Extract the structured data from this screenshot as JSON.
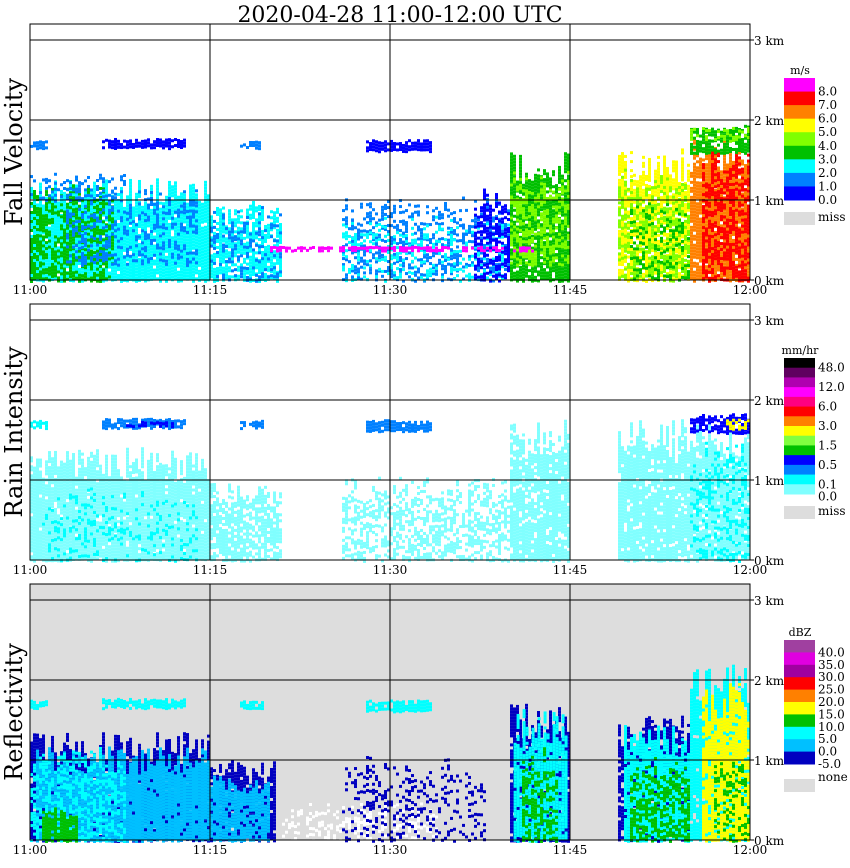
{
  "chart_data": {
    "type": "heatmap",
    "title": "2020-04-28   11:00-12:00 UTC",
    "x_ticks": [
      "11:00",
      "11:15",
      "11:30",
      "11:45",
      "12:00"
    ],
    "x_range_minutes": [
      0,
      60
    ],
    "y_ticks": [
      "0 km",
      "1 km",
      "2 km",
      "3 km"
    ],
    "y_range_km": [
      0,
      3.2
    ],
    "grid": true,
    "panels": [
      {
        "ylabel": "Fall Velocity",
        "background": "#ffffff",
        "colorbar": {
          "unit": "m/s",
          "colors": [
            "#ff00ff",
            "#ff0000",
            "#ff8000",
            "#ffff00",
            "#80ff00",
            "#00c000",
            "#00ffff",
            "#0080ff",
            "#0000ff"
          ],
          "labels": [
            "8.0",
            "7.0",
            "6.0",
            "5.0",
            "4.0",
            "3.0",
            "2.0",
            "1.0",
            "0.0"
          ],
          "missing_label": "miss",
          "missing_color": "#dddddd"
        },
        "echoes": [
          [
            0,
            1.5,
            1.66,
            1.74,
            "#0080ff",
            0.9
          ],
          [
            6,
            13,
            1.66,
            1.76,
            "#0000ff",
            0.9
          ],
          [
            17.5,
            19.5,
            1.66,
            1.74,
            "#0080ff",
            0.8
          ],
          [
            28,
            33.5,
            1.62,
            1.74,
            "#0000ff",
            0.9
          ],
          [
            0,
            15,
            0,
            1.1,
            "#00ffff",
            0.95
          ],
          [
            0,
            7,
            0,
            1.05,
            "#00c000",
            0.6
          ],
          [
            3,
            14,
            0.2,
            1.0,
            "#0080ff",
            0.35
          ],
          [
            0,
            8,
            1.0,
            1.3,
            "#0080ff",
            0.3
          ],
          [
            15,
            21,
            0,
            0.85,
            "#00ffff",
            0.7
          ],
          [
            15,
            21,
            0,
            0.8,
            "#0080ff",
            0.3
          ],
          [
            26,
            40,
            0,
            0.9,
            "#0080ff",
            0.35
          ],
          [
            26,
            40,
            0,
            0.7,
            "#00ffff",
            0.25
          ],
          [
            37,
            40,
            0,
            1.0,
            "#0000ff",
            0.5
          ],
          [
            40,
            45,
            0,
            1.4,
            "#00c000",
            0.9
          ],
          [
            40,
            45,
            0.2,
            1.2,
            "#80ff00",
            0.5
          ],
          [
            49,
            55,
            0,
            1.4,
            "#ffff00",
            0.8
          ],
          [
            49,
            55,
            0,
            1.2,
            "#80ff00",
            0.4
          ],
          [
            50,
            55,
            0,
            0.9,
            "#00c000",
            0.3
          ],
          [
            55,
            60,
            0,
            1.6,
            "#ff8000",
            0.9
          ],
          [
            56,
            60,
            0,
            1.4,
            "#ff0000",
            0.6
          ],
          [
            55,
            60,
            1.6,
            1.9,
            "#00c000",
            0.8
          ],
          [
            55,
            60,
            1.75,
            1.9,
            "#80ff00",
            0.4
          ],
          [
            20,
            42,
            0.38,
            0.42,
            "#ff00ff",
            0.7
          ]
        ]
      },
      {
        "ylabel": "Rain Intensity",
        "background": "#ffffff",
        "colorbar": {
          "unit": "mm/hr",
          "colors": [
            "#000000",
            "#600060",
            "#b000b0",
            "#ff00ff",
            "#ff0080",
            "#ff0000",
            "#ff8000",
            "#ffff00",
            "#80ff40",
            "#00c000",
            "#0000ff",
            "#0080ff",
            "#00ffff",
            "#80ffff"
          ],
          "labels": [
            "48.0",
            "12.0",
            "6.0",
            "3.0",
            "1.5",
            "0.5",
            "0.1",
            "0.0"
          ],
          "missing_label": "miss",
          "missing_color": "#dddddd"
        },
        "echoes": [
          [
            0,
            1.5,
            1.66,
            1.74,
            "#00ffff",
            0.8
          ],
          [
            6,
            13,
            1.66,
            1.76,
            "#0080ff",
            0.9
          ],
          [
            8,
            12,
            1.68,
            1.73,
            "#0000ff",
            0.6
          ],
          [
            17.5,
            19.5,
            1.66,
            1.74,
            "#0080ff",
            0.8
          ],
          [
            28,
            33.5,
            1.62,
            1.74,
            "#0080ff",
            0.9
          ],
          [
            0,
            15,
            0,
            1.2,
            "#80ffff",
            0.95
          ],
          [
            1,
            14,
            0,
            0.8,
            "#00ffff",
            0.2
          ],
          [
            15,
            21,
            0,
            0.85,
            "#80ffff",
            0.75
          ],
          [
            26,
            40,
            0,
            0.9,
            "#80ffff",
            0.5
          ],
          [
            40,
            45,
            0,
            1.5,
            "#80ffff",
            0.85
          ],
          [
            49,
            60,
            0,
            1.5,
            "#80ffff",
            0.9
          ],
          [
            55,
            60,
            0,
            1.3,
            "#00ffff",
            0.35
          ],
          [
            55,
            60,
            1.6,
            1.8,
            "#0000ff",
            0.8
          ],
          [
            58,
            60,
            1.65,
            1.75,
            "#ffff00",
            0.6
          ]
        ]
      },
      {
        "ylabel": "Reflectivity",
        "background": "#dddddd",
        "colorbar": {
          "unit": "dBZ",
          "colors": [
            "#a040a0",
            "#e000e0",
            "#a000a0",
            "#ff0000",
            "#ff8000",
            "#ffff00",
            "#00c000",
            "#00ffff",
            "#00c0ff",
            "#0000c0"
          ],
          "labels": [
            "40.0",
            "35.0",
            "30.0",
            "25.0",
            "20.0",
            "15.0",
            "10.0",
            "5.0",
            "0.0",
            "-5.0"
          ],
          "missing_label": "none",
          "missing_color": "#dddddd"
        },
        "echoes": [
          [
            0,
            1.5,
            1.66,
            1.74,
            "#00ffff",
            0.8
          ],
          [
            6,
            13,
            1.66,
            1.76,
            "#00ffff",
            0.9
          ],
          [
            17.5,
            19.5,
            1.66,
            1.74,
            "#00ffff",
            0.8
          ],
          [
            28,
            33.5,
            1.62,
            1.74,
            "#00ffff",
            0.9
          ],
          [
            0,
            15,
            0,
            1.15,
            "#0000c0",
            0.95
          ],
          [
            0.5,
            15,
            0,
            1.0,
            "#00c0ff",
            0.95
          ],
          [
            0,
            8,
            0,
            1.0,
            "#00ffff",
            0.5
          ],
          [
            1,
            4,
            0,
            0.35,
            "#00c000",
            0.9
          ],
          [
            15,
            20.5,
            0,
            0.85,
            "#0000c0",
            0.9
          ],
          [
            15,
            20,
            0,
            0.7,
            "#00c0ff",
            0.9
          ],
          [
            21,
            34,
            0,
            0.4,
            "#ffffff",
            0.35
          ],
          [
            26,
            38,
            0,
            0.9,
            "#0000c0",
            0.25
          ],
          [
            40,
            45,
            0,
            1.5,
            "#0000c0",
            0.9
          ],
          [
            40.3,
            44.7,
            0,
            1.4,
            "#00ffff",
            0.9
          ],
          [
            41,
            44,
            0,
            1.0,
            "#00c000",
            0.5
          ],
          [
            49,
            55,
            0,
            1.35,
            "#0000c0",
            0.85
          ],
          [
            49.5,
            55,
            0,
            1.25,
            "#00ffff",
            0.9
          ],
          [
            50,
            55,
            0,
            0.9,
            "#00c000",
            0.55
          ],
          [
            55,
            60,
            0,
            1.9,
            "#00ffff",
            0.95
          ],
          [
            56,
            60,
            0,
            1.75,
            "#ffff00",
            0.85
          ],
          [
            57,
            60,
            0,
            1.0,
            "#00c000",
            0.3
          ]
        ]
      }
    ]
  }
}
